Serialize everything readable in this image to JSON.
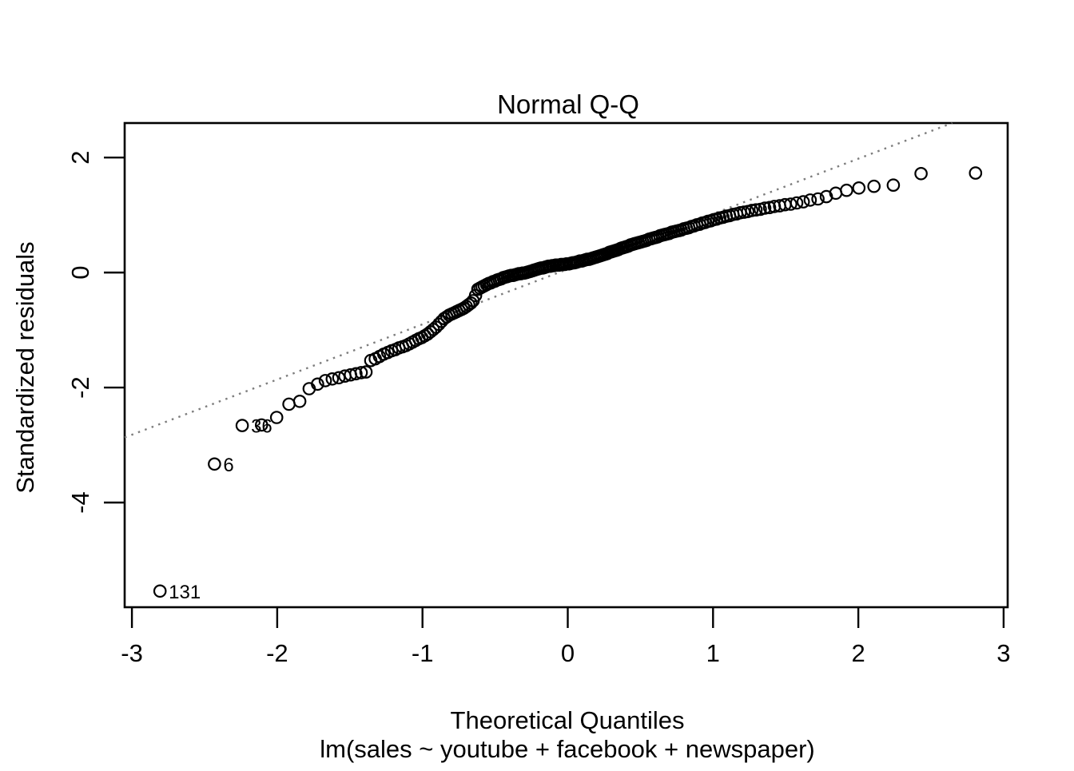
{
  "figure": {
    "background": "#ffffff",
    "foreground": "#000000"
  },
  "chart_data": {
    "type": "scatter",
    "title": "Normal Q-Q",
    "xlabel": "Theoretical Quantiles",
    "xlabel_sub": "lm(sales ~ youtube + facebook + newspaper)",
    "ylabel": "Standardized residuals",
    "x_ticks": [
      -3,
      -2,
      -1,
      0,
      1,
      2,
      3
    ],
    "y_ticks": [
      2,
      0,
      -2,
      -4
    ],
    "xlim": [
      -3.05,
      3.028
    ],
    "ylim": [
      -5.82,
      2.6
    ],
    "grid": false,
    "legend": "none",
    "marker": {
      "shape": "open-circle",
      "color": "#000000",
      "radius_px": 7.2
    },
    "reference_line": {
      "style": "dotted",
      "color": "#7d7d7d",
      "intercept": 0.06,
      "slope": 0.96
    },
    "outlier_labels": [
      {
        "label": "131",
        "x": -2.807,
        "y": -5.54
      },
      {
        "label": "6",
        "x": -2.432,
        "y": -3.33
      },
      {
        "label": "36",
        "x": -2.241,
        "y": -2.66
      }
    ],
    "points": [
      [
        -2.807,
        -5.54
      ],
      [
        -2.432,
        -3.33
      ],
      [
        -2.241,
        -2.66
      ],
      [
        -2.108,
        -2.65
      ],
      [
        -2.004,
        -2.52
      ],
      [
        -1.919,
        -2.29
      ],
      [
        -1.845,
        -2.24
      ],
      [
        -1.78,
        -2.02
      ],
      [
        -1.722,
        -1.94
      ],
      [
        -1.669,
        -1.88
      ],
      [
        -1.621,
        -1.85
      ],
      [
        -1.576,
        -1.83
      ],
      [
        -1.534,
        -1.8
      ],
      [
        -1.495,
        -1.78
      ],
      [
        -1.458,
        -1.76
      ],
      [
        -1.422,
        -1.74
      ],
      [
        -1.389,
        -1.73
      ],
      [
        -1.356,
        -1.53
      ],
      [
        -1.325,
        -1.5
      ],
      [
        -1.296,
        -1.46
      ],
      [
        -1.267,
        -1.42
      ],
      [
        -1.239,
        -1.39
      ],
      [
        -1.213,
        -1.36
      ],
      [
        -1.187,
        -1.34
      ],
      [
        -1.162,
        -1.31
      ],
      [
        -1.137,
        -1.29
      ],
      [
        -1.114,
        -1.27
      ],
      [
        -1.091,
        -1.24
      ],
      [
        -1.068,
        -1.21
      ],
      [
        -1.047,
        -1.18
      ],
      [
        -1.025,
        -1.15
      ],
      [
        -1.005,
        -1.13
      ],
      [
        -0.984,
        -1.1
      ],
      [
        -0.964,
        -1.07
      ],
      [
        -0.945,
        -1.03
      ],
      [
        -0.926,
        -0.99
      ],
      [
        -0.907,
        -0.95
      ],
      [
        -0.887,
        -0.9
      ],
      [
        -0.869,
        -0.85
      ],
      [
        -0.851,
        -0.8
      ],
      [
        -0.833,
        -0.77
      ],
      [
        -0.816,
        -0.74
      ],
      [
        -0.798,
        -0.72
      ],
      [
        -0.781,
        -0.7
      ],
      [
        -0.765,
        -0.68
      ],
      [
        -0.748,
        -0.66
      ],
      [
        -0.731,
        -0.64
      ],
      [
        -0.715,
        -0.62
      ],
      [
        -0.698,
        -0.59
      ],
      [
        -0.682,
        -0.56
      ],
      [
        -0.666,
        -0.53
      ],
      [
        -0.651,
        -0.49
      ],
      [
        -0.635,
        -0.4
      ],
      [
        -0.619,
        -0.29
      ],
      [
        -0.604,
        -0.27
      ],
      [
        -0.589,
        -0.25
      ],
      [
        -0.574,
        -0.23
      ],
      [
        -0.559,
        -0.21
      ],
      [
        -0.544,
        -0.19
      ],
      [
        -0.53,
        -0.18
      ],
      [
        -0.515,
        -0.16
      ],
      [
        -0.501,
        -0.15
      ],
      [
        -0.487,
        -0.13
      ],
      [
        -0.473,
        -0.12
      ],
      [
        -0.459,
        -0.11
      ],
      [
        -0.445,
        -0.09
      ],
      [
        -0.431,
        -0.08
      ],
      [
        -0.417,
        -0.07
      ],
      [
        -0.404,
        -0.06
      ],
      [
        -0.39,
        -0.05
      ],
      [
        -0.377,
        -0.05
      ],
      [
        -0.364,
        -0.04
      ],
      [
        -0.35,
        -0.03
      ],
      [
        -0.337,
        -0.02
      ],
      [
        -0.324,
        -0.02
      ],
      [
        -0.311,
        -0.01
      ],
      [
        -0.298,
        -0.01
      ],
      [
        -0.285,
        0.0
      ],
      [
        -0.272,
        0.01
      ],
      [
        -0.259,
        0.02
      ],
      [
        -0.246,
        0.03
      ],
      [
        -0.234,
        0.04
      ],
      [
        -0.221,
        0.05
      ],
      [
        -0.208,
        0.06
      ],
      [
        -0.196,
        0.07
      ],
      [
        -0.183,
        0.08
      ],
      [
        -0.171,
        0.08
      ],
      [
        -0.158,
        0.09
      ],
      [
        -0.146,
        0.1
      ],
      [
        -0.133,
        0.11
      ],
      [
        -0.121,
        0.11
      ],
      [
        -0.108,
        0.12
      ],
      [
        -0.096,
        0.12
      ],
      [
        -0.083,
        0.13
      ],
      [
        -0.071,
        0.13
      ],
      [
        -0.059,
        0.13
      ],
      [
        -0.046,
        0.14
      ],
      [
        -0.034,
        0.14
      ],
      [
        -0.021,
        0.14
      ],
      [
        -0.009,
        0.15
      ],
      [
        0.009,
        0.15
      ],
      [
        0.021,
        0.16
      ],
      [
        0.034,
        0.17
      ],
      [
        0.046,
        0.17
      ],
      [
        0.059,
        0.18
      ],
      [
        0.071,
        0.19
      ],
      [
        0.083,
        0.2
      ],
      [
        0.096,
        0.2
      ],
      [
        0.108,
        0.21
      ],
      [
        0.121,
        0.22
      ],
      [
        0.133,
        0.23
      ],
      [
        0.146,
        0.23
      ],
      [
        0.158,
        0.24
      ],
      [
        0.171,
        0.25
      ],
      [
        0.183,
        0.26
      ],
      [
        0.196,
        0.27
      ],
      [
        0.208,
        0.28
      ],
      [
        0.221,
        0.29
      ],
      [
        0.234,
        0.3
      ],
      [
        0.246,
        0.31
      ],
      [
        0.259,
        0.32
      ],
      [
        0.272,
        0.33
      ],
      [
        0.285,
        0.35
      ],
      [
        0.298,
        0.36
      ],
      [
        0.311,
        0.37
      ],
      [
        0.324,
        0.38
      ],
      [
        0.337,
        0.39
      ],
      [
        0.35,
        0.4
      ],
      [
        0.364,
        0.42
      ],
      [
        0.377,
        0.43
      ],
      [
        0.39,
        0.44
      ],
      [
        0.404,
        0.45
      ],
      [
        0.417,
        0.46
      ],
      [
        0.431,
        0.48
      ],
      [
        0.445,
        0.49
      ],
      [
        0.459,
        0.5
      ],
      [
        0.473,
        0.51
      ],
      [
        0.487,
        0.52
      ],
      [
        0.501,
        0.53
      ],
      [
        0.515,
        0.54
      ],
      [
        0.53,
        0.55
      ],
      [
        0.544,
        0.56
      ],
      [
        0.559,
        0.58
      ],
      [
        0.574,
        0.59
      ],
      [
        0.589,
        0.6
      ],
      [
        0.604,
        0.61
      ],
      [
        0.619,
        0.62
      ],
      [
        0.635,
        0.64
      ],
      [
        0.651,
        0.65
      ],
      [
        0.666,
        0.66
      ],
      [
        0.682,
        0.67
      ],
      [
        0.698,
        0.68
      ],
      [
        0.715,
        0.7
      ],
      [
        0.731,
        0.71
      ],
      [
        0.748,
        0.72
      ],
      [
        0.765,
        0.73
      ],
      [
        0.781,
        0.74
      ],
      [
        0.798,
        0.76
      ],
      [
        0.816,
        0.77
      ],
      [
        0.833,
        0.78
      ],
      [
        0.851,
        0.8
      ],
      [
        0.869,
        0.81
      ],
      [
        0.887,
        0.83
      ],
      [
        0.907,
        0.84
      ],
      [
        0.926,
        0.86
      ],
      [
        0.945,
        0.87
      ],
      [
        0.964,
        0.89
      ],
      [
        0.984,
        0.9
      ],
      [
        1.005,
        0.92
      ],
      [
        1.025,
        0.93
      ],
      [
        1.047,
        0.95
      ],
      [
        1.068,
        0.96
      ],
      [
        1.091,
        0.98
      ],
      [
        1.114,
        0.99
      ],
      [
        1.137,
        1.01
      ],
      [
        1.162,
        1.02
      ],
      [
        1.187,
        1.04
      ],
      [
        1.213,
        1.05
      ],
      [
        1.239,
        1.06
      ],
      [
        1.267,
        1.08
      ],
      [
        1.296,
        1.09
      ],
      [
        1.325,
        1.1
      ],
      [
        1.356,
        1.12
      ],
      [
        1.389,
        1.13
      ],
      [
        1.422,
        1.15
      ],
      [
        1.458,
        1.16
      ],
      [
        1.495,
        1.18
      ],
      [
        1.534,
        1.19
      ],
      [
        1.576,
        1.21
      ],
      [
        1.621,
        1.23
      ],
      [
        1.669,
        1.26
      ],
      [
        1.722,
        1.28
      ],
      [
        1.78,
        1.32
      ],
      [
        1.845,
        1.38
      ],
      [
        1.919,
        1.43
      ],
      [
        2.004,
        1.47
      ],
      [
        2.108,
        1.5
      ],
      [
        2.241,
        1.52
      ],
      [
        2.432,
        1.72
      ],
      [
        2.807,
        1.73
      ]
    ]
  }
}
